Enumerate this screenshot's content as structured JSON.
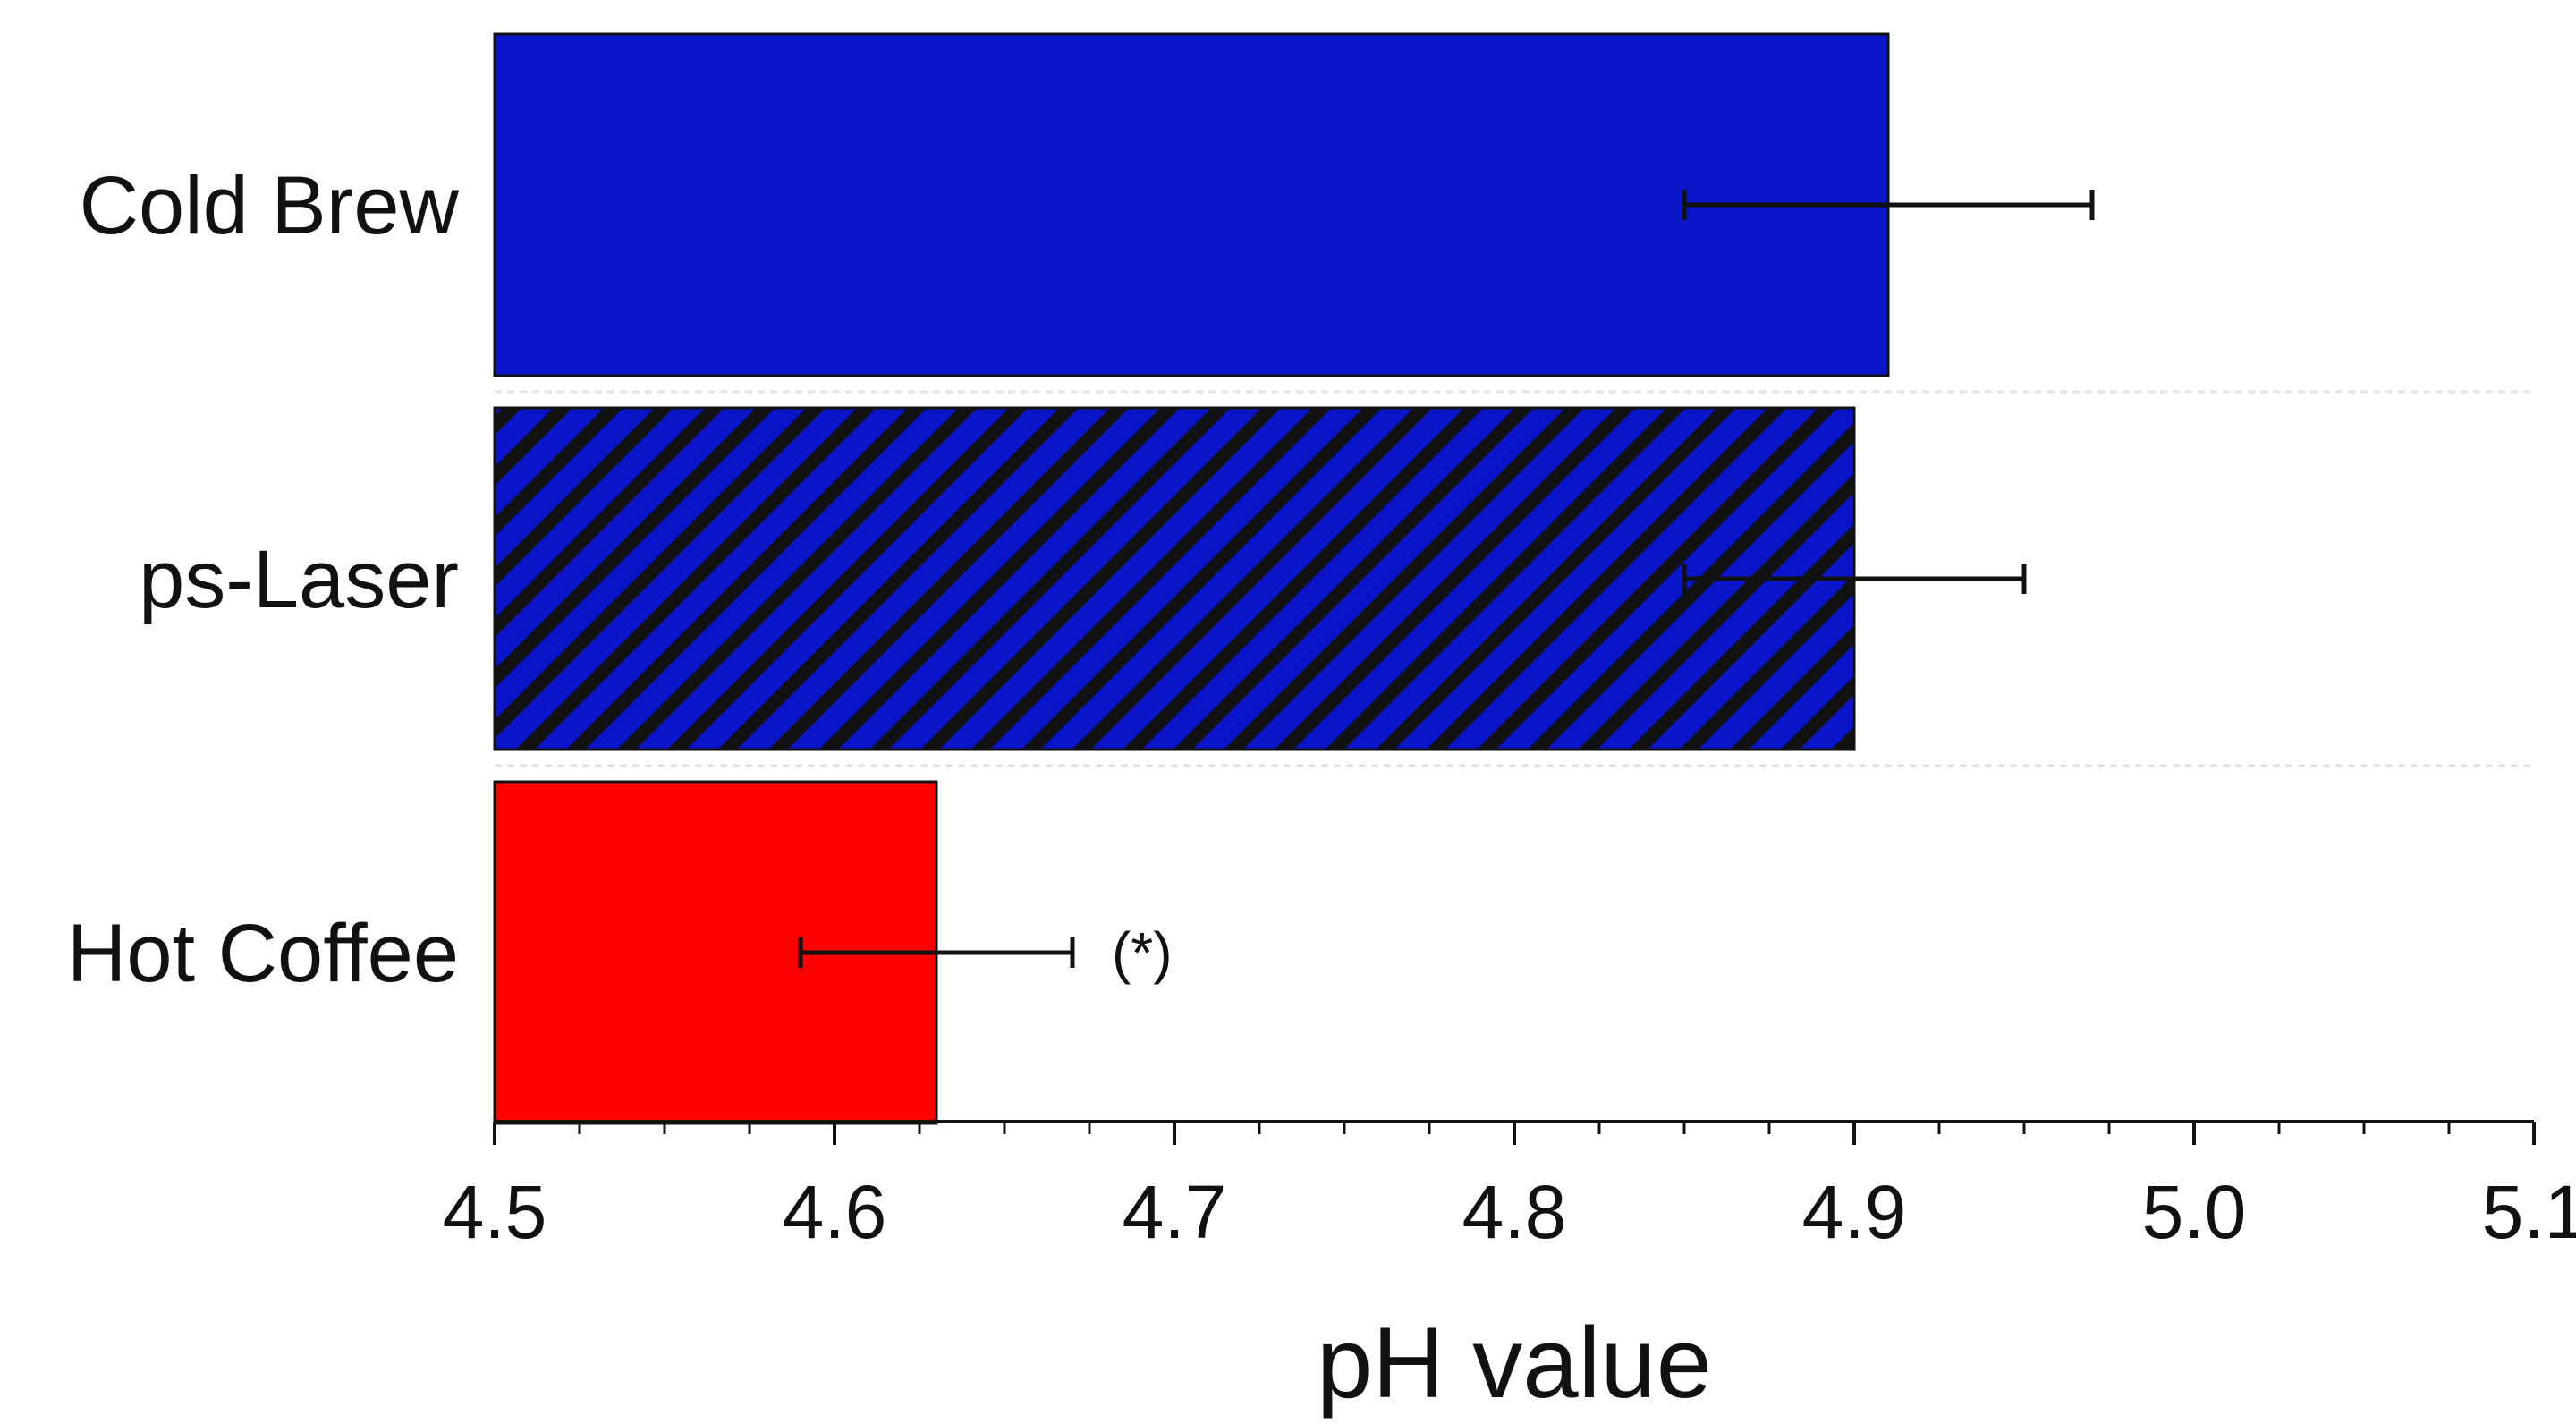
{
  "chart_data": {
    "type": "bar",
    "orientation": "horizontal",
    "title": "",
    "xlabel": "pH value",
    "ylabel": "",
    "xlim": [
      4.5,
      5.1
    ],
    "xticks": [
      "4.5",
      "4.6",
      "4.7",
      "4.8",
      "4.9",
      "5.0",
      "5.1"
    ],
    "minor_ticks_per_interval": 4,
    "grid": false,
    "legend": "none",
    "categories": [
      "Cold Brew",
      "ps-Laser",
      "Hot Coffee"
    ],
    "values": [
      4.91,
      4.9,
      4.63
    ],
    "error_low": [
      4.85,
      4.85,
      4.59
    ],
    "error_high": [
      4.97,
      4.95,
      4.67
    ],
    "fills": [
      {
        "color": "#0a14c8",
        "pattern": "solid"
      },
      {
        "color": "#0a14c8",
        "pattern": "diagonal-hatch",
        "hatch_color": "#111111"
      },
      {
        "color": "#ff0000",
        "pattern": "solid"
      }
    ],
    "annotations": [
      {
        "category": "Hot Coffee",
        "text": "(*)"
      }
    ]
  }
}
